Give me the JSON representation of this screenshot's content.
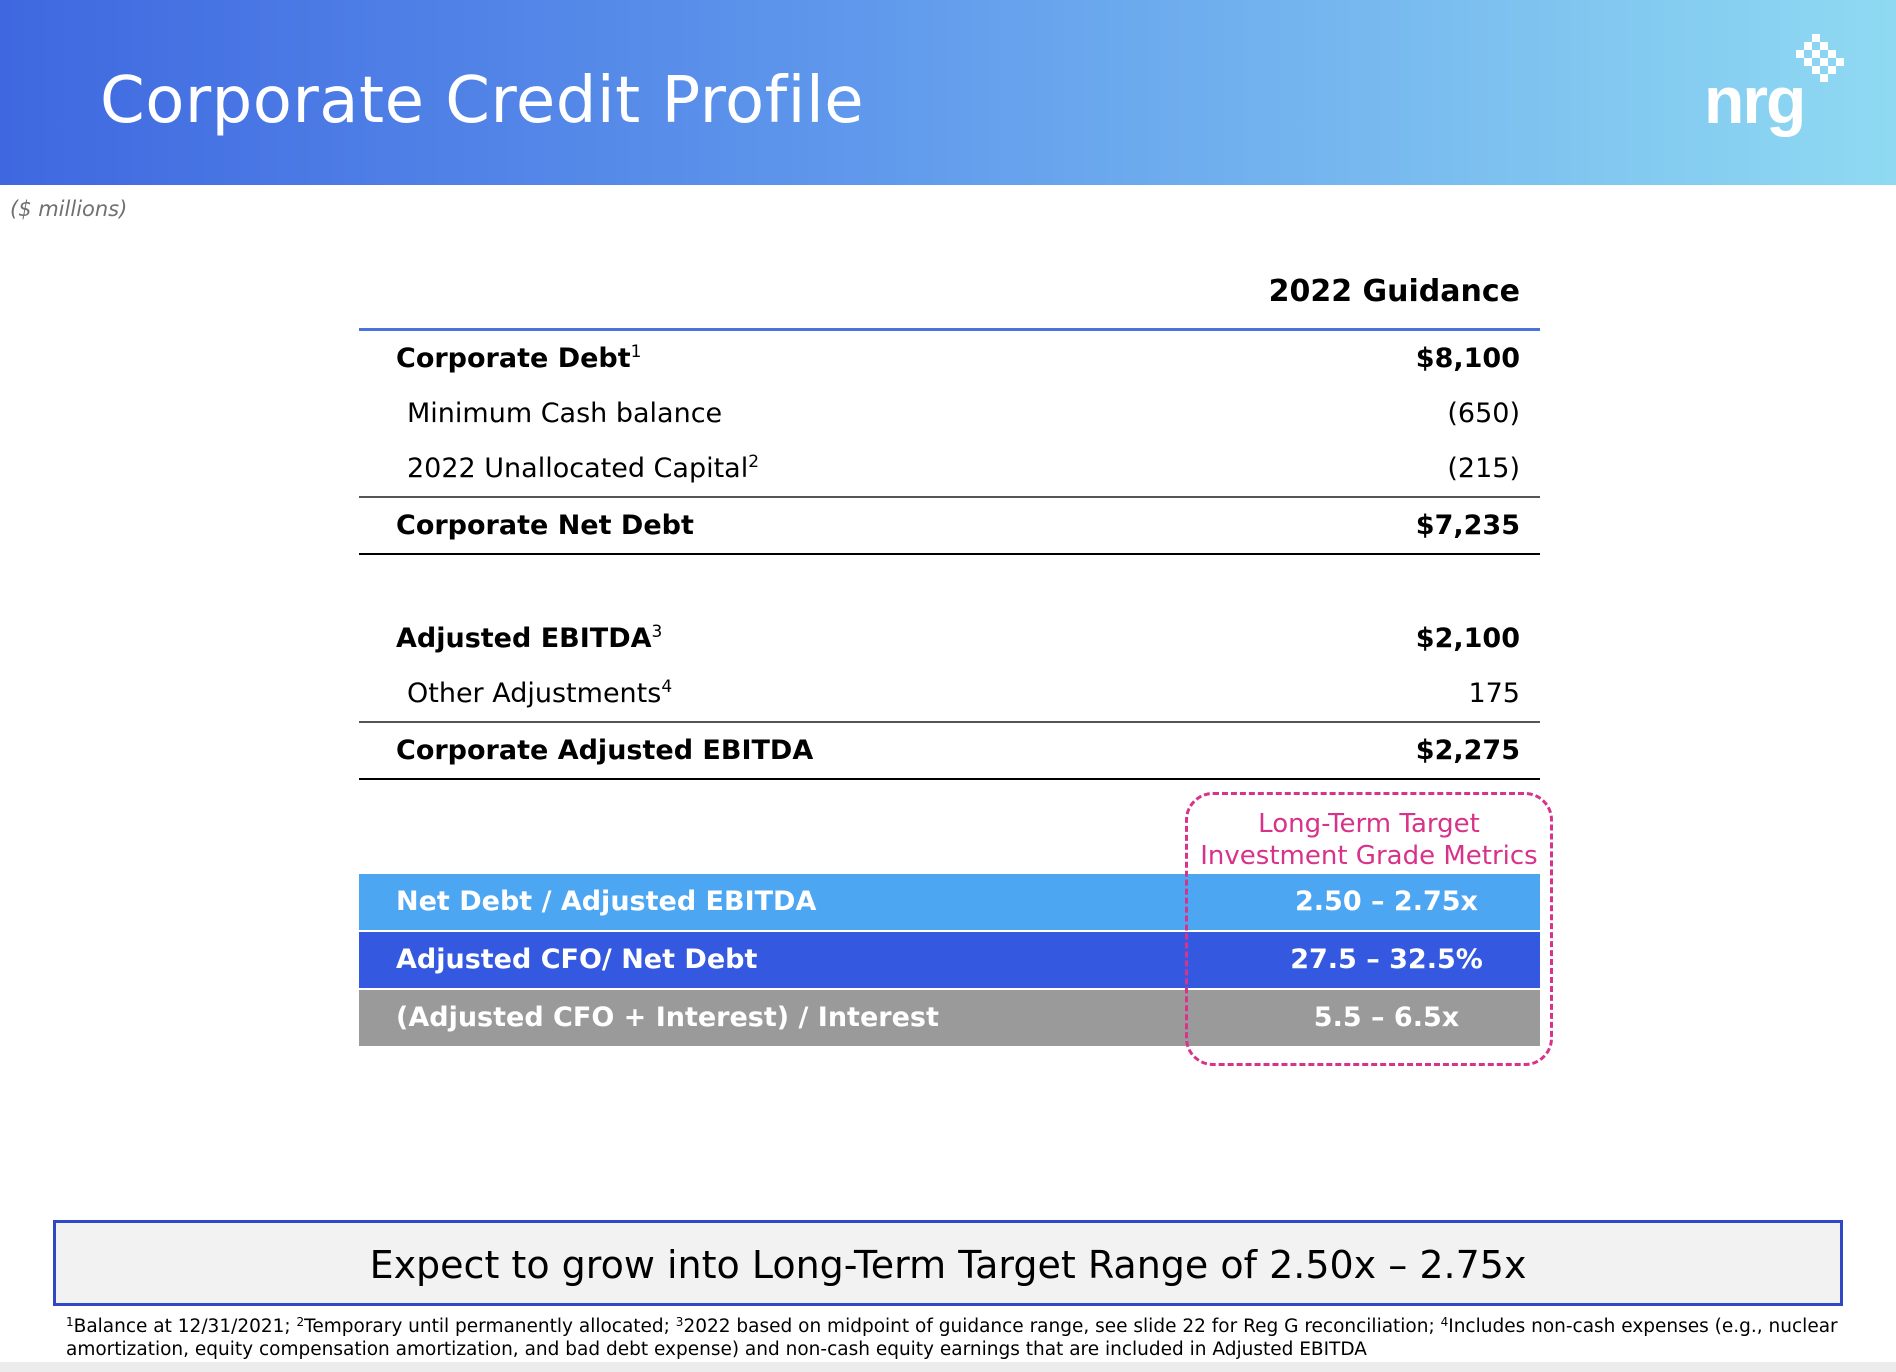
{
  "header": {
    "title": "Corporate Credit Profile",
    "logo_text": "nrg",
    "logo_mark": "pixel-diamond-icon"
  },
  "units_note": "($ millions)",
  "table": {
    "column_header": "2022 Guidance",
    "rows": [
      {
        "label": "Corporate Debt",
        "sup": "1",
        "value": "$8,100",
        "bold": true
      },
      {
        "label": "Minimum Cash balance",
        "sup": "",
        "value": "(650)",
        "bold": false
      },
      {
        "label": "2022 Unallocated Capital",
        "sup": "2",
        "value": "(215)",
        "bold": false
      },
      {
        "label": "Corporate Net Debt",
        "sup": "",
        "value": "$7,235",
        "bold": true
      },
      {
        "label": "Adjusted EBITDA",
        "sup": "3",
        "value": "$2,100",
        "bold": true
      },
      {
        "label": "Other Adjustments",
        "sup": "4",
        "value": "175",
        "bold": false
      },
      {
        "label": "Corporate Adjusted EBITDA",
        "sup": "",
        "value": "$2,275",
        "bold": true
      }
    ]
  },
  "callout": {
    "line1": "Long-Term Target",
    "line2": "Investment Grade Metrics"
  },
  "metrics": [
    {
      "label": "Net Debt / Adjusted EBITDA",
      "value": "2.50 – 2.75x",
      "color": "#4da6f2"
    },
    {
      "label": "Adjusted CFO/ Net Debt",
      "value": "27.5 – 32.5%",
      "color": "#3458e0"
    },
    {
      "label": "(Adjusted CFO + Interest) / Interest",
      "value": "5.5 – 6.5x",
      "color": "#9a9a9a"
    }
  ],
  "banner": "Expect to grow into Long-Term Target Range of 2.50x – 2.75x",
  "footnotes": {
    "n1": "1",
    "t1": "Balance at 12/31/2021; ",
    "n2": "2",
    "t2": "Temporary until permanently allocated; ",
    "n3": "3",
    "t3": "2022 based on midpoint of guidance range, see slide 22 for Reg G reconciliation; ",
    "n4": "4",
    "t4": "Includes non-cash expenses (e.g., nuclear amortization, equity compensation amortization, and bad debt expense) and non-cash equity earnings that are included in Adjusted EBITDA"
  }
}
